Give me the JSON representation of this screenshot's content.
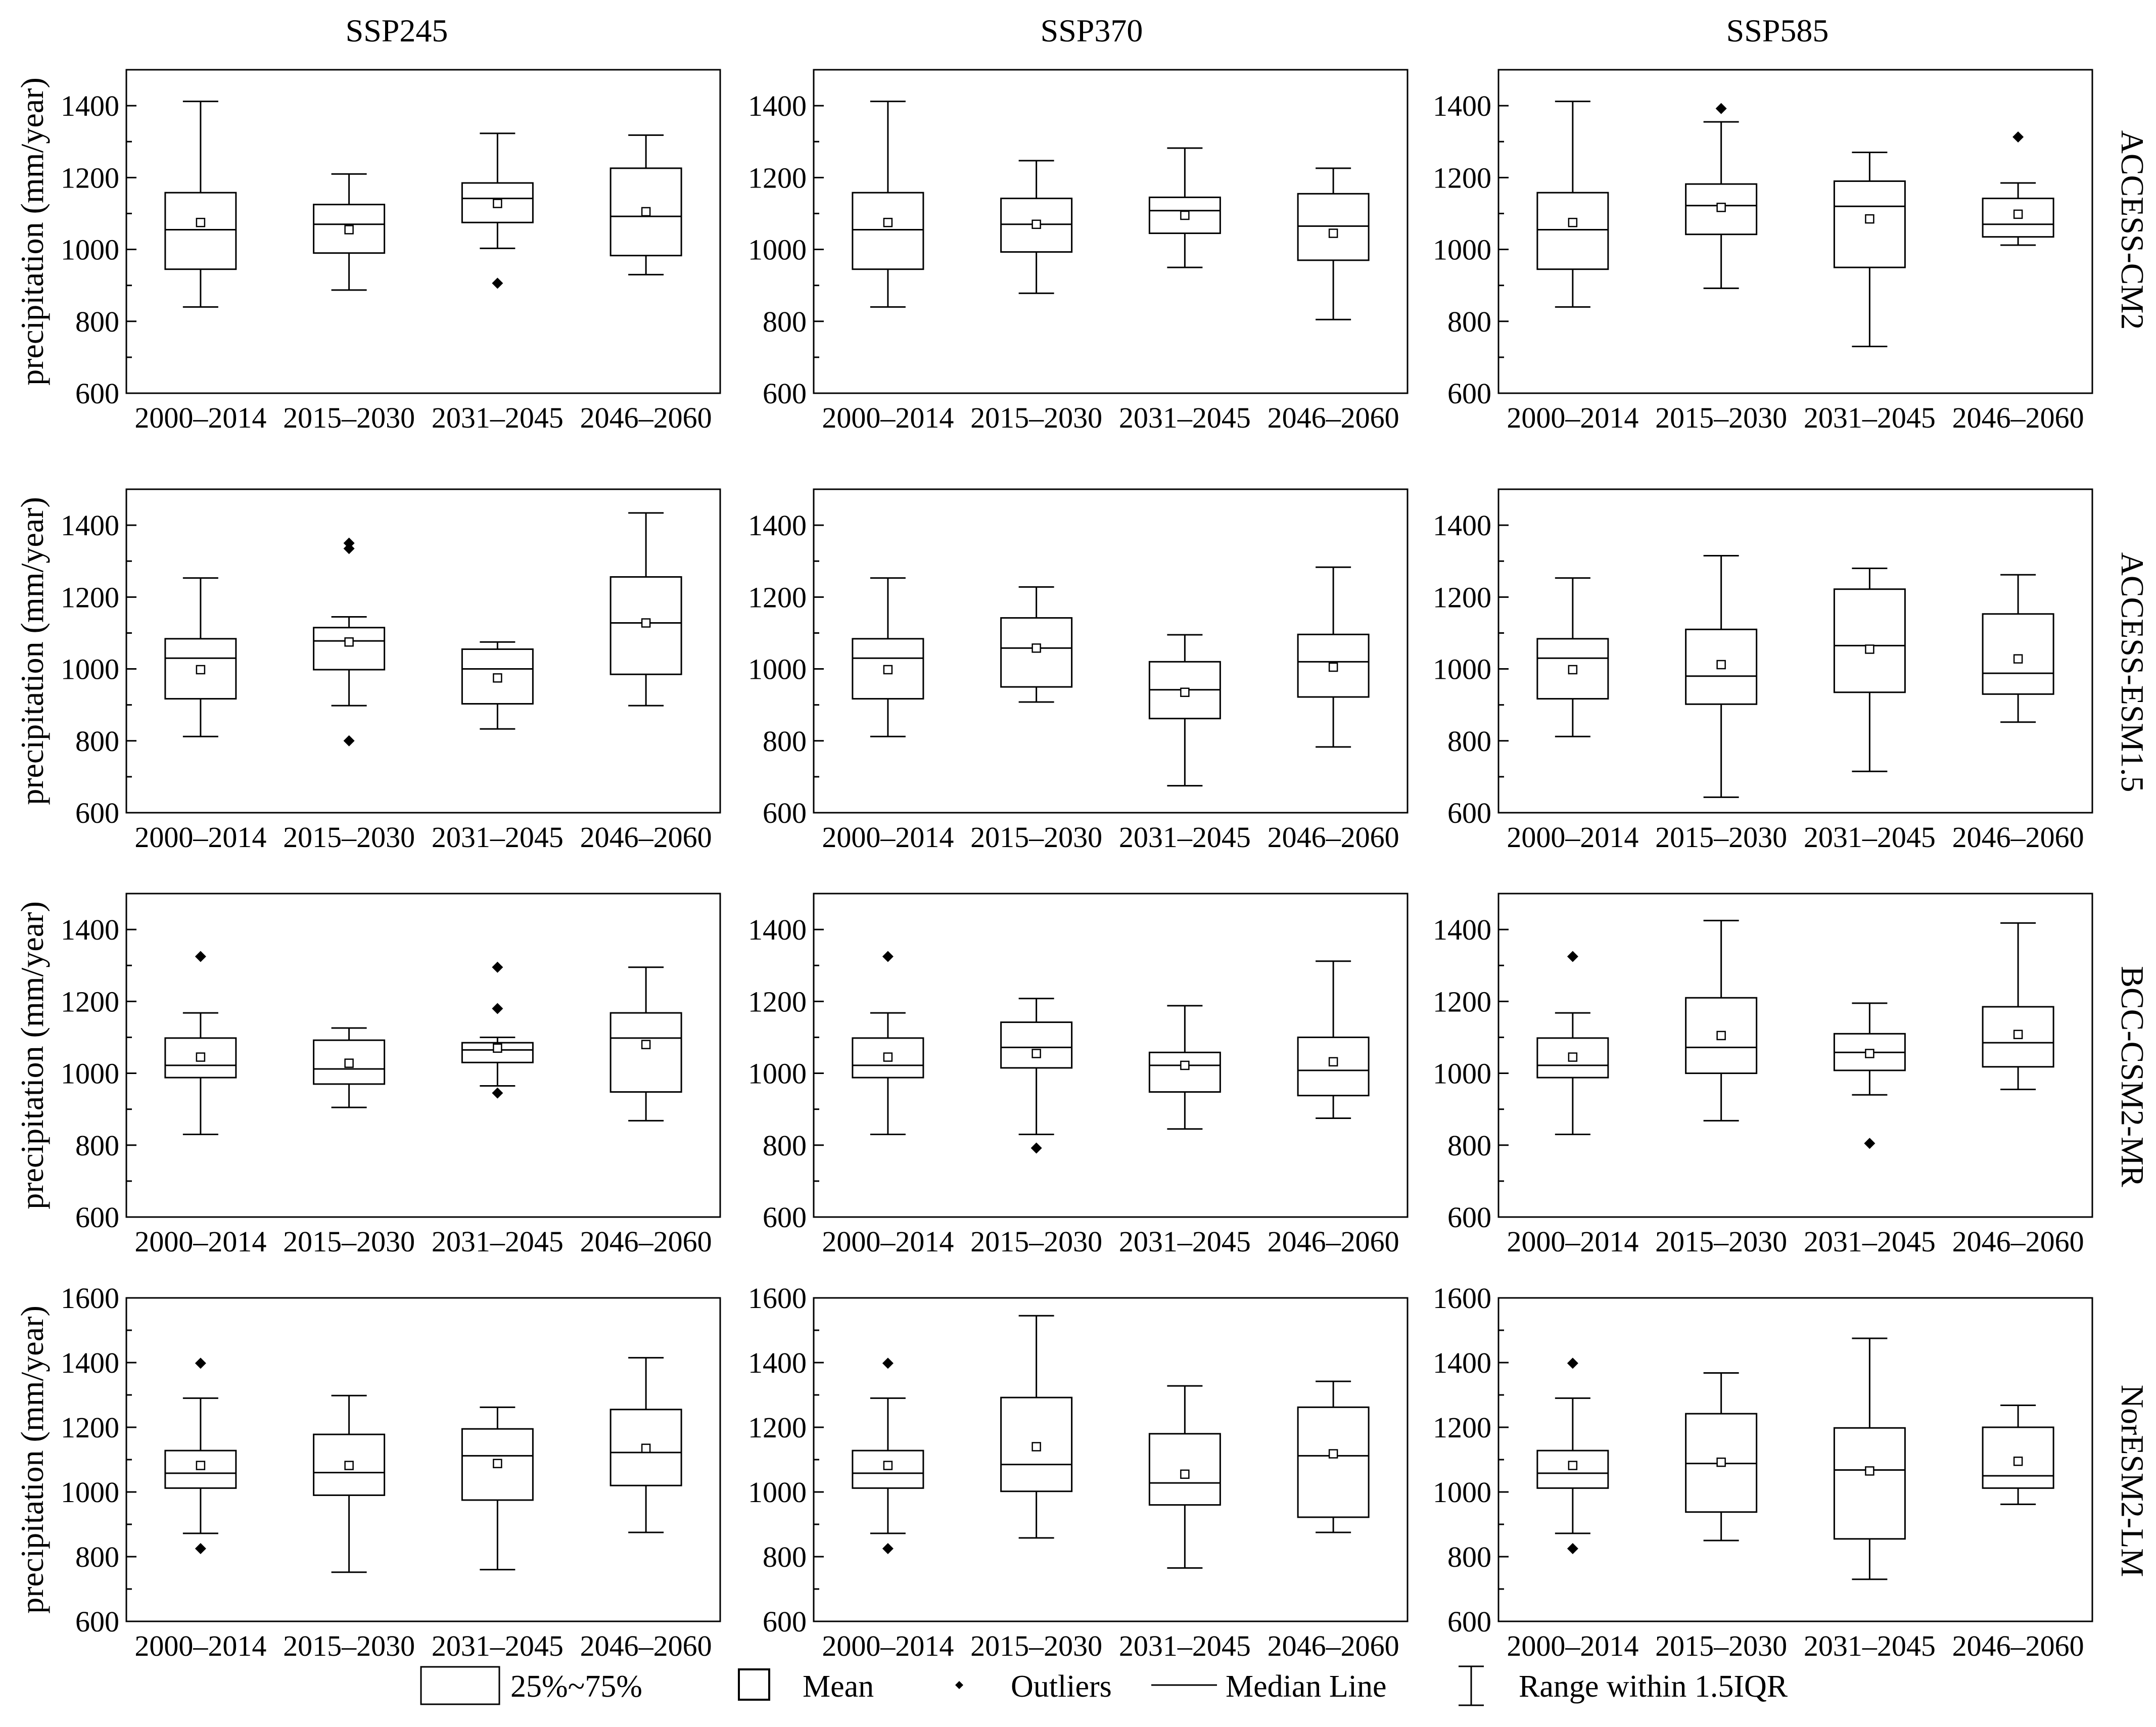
{
  "columns": [
    "SSP245",
    "SSP370",
    "SSP585"
  ],
  "rows": [
    "ACCESS-CM2",
    "ACCESS-ESM1.5",
    "BCC-CSM2-MR",
    "NorESM2-LM"
  ],
  "legend": {
    "box": "25%~75%",
    "mean": "Mean",
    "outliers": "Outliers",
    "median": "Median Line",
    "range": "Range within 1.5IQR"
  },
  "chart_data": [
    {
      "type": "box",
      "row": "ACCESS-CM2",
      "scenario": "SSP245",
      "ylabel": "precipitation (mm/year)",
      "ylim": [
        600,
        1500
      ],
      "yticks": [
        600,
        800,
        1000,
        1200,
        1400
      ],
      "categories": [
        "2000–2014",
        "2015–2030",
        "2031–2045",
        "2046–2060"
      ],
      "boxes": [
        {
          "min": 840,
          "q1": 945,
          "median": 1055,
          "q3": 1158,
          "max": 1412,
          "mean": 1075,
          "outliers": []
        },
        {
          "min": 887,
          "q1": 990,
          "median": 1070,
          "q3": 1125,
          "max": 1210,
          "mean": 1055,
          "outliers": []
        },
        {
          "min": 1003,
          "q1": 1075,
          "median": 1142,
          "q3": 1185,
          "max": 1323,
          "mean": 1128,
          "outliers": [
            906
          ]
        },
        {
          "min": 930,
          "q1": 983,
          "median": 1092,
          "q3": 1226,
          "max": 1318,
          "mean": 1105,
          "outliers": []
        }
      ]
    },
    {
      "type": "box",
      "row": "ACCESS-CM2",
      "scenario": "SSP370",
      "ylabel": "",
      "ylim": [
        600,
        1500
      ],
      "yticks": [
        600,
        800,
        1000,
        1200,
        1400
      ],
      "categories": [
        "2000–2014",
        "2015–2030",
        "2031–2045",
        "2046–2060"
      ],
      "boxes": [
        {
          "min": 840,
          "q1": 945,
          "median": 1055,
          "q3": 1158,
          "max": 1412,
          "mean": 1075,
          "outliers": []
        },
        {
          "min": 878,
          "q1": 993,
          "median": 1070,
          "q3": 1142,
          "max": 1247,
          "mean": 1070,
          "outliers": []
        },
        {
          "min": 950,
          "q1": 1045,
          "median": 1108,
          "q3": 1145,
          "max": 1282,
          "mean": 1095,
          "outliers": []
        },
        {
          "min": 805,
          "q1": 970,
          "median": 1065,
          "q3": 1155,
          "max": 1226,
          "mean": 1045,
          "outliers": []
        }
      ]
    },
    {
      "type": "box",
      "row": "ACCESS-CM2",
      "scenario": "SSP585",
      "ylabel": "",
      "ylim": [
        600,
        1500
      ],
      "yticks": [
        600,
        800,
        1000,
        1200,
        1400
      ],
      "categories": [
        "2000–2014",
        "2015–2030",
        "2031–2045",
        "2046–2060"
      ],
      "boxes": [
        {
          "min": 840,
          "q1": 945,
          "median": 1055,
          "q3": 1158,
          "max": 1412,
          "mean": 1075,
          "outliers": []
        },
        {
          "min": 892,
          "q1": 1042,
          "median": 1122,
          "q3": 1182,
          "max": 1355,
          "mean": 1117,
          "outliers": [
            1392
          ]
        },
        {
          "min": 730,
          "q1": 950,
          "median": 1120,
          "q3": 1190,
          "max": 1270,
          "mean": 1085,
          "outliers": []
        },
        {
          "min": 1012,
          "q1": 1035,
          "median": 1070,
          "q3": 1142,
          "max": 1185,
          "mean": 1098,
          "outliers": [
            1313
          ]
        }
      ]
    },
    {
      "type": "box",
      "row": "ACCESS-ESM1.5",
      "scenario": "SSP245",
      "ylabel": "precipitation (mm/year)",
      "ylim": [
        600,
        1500
      ],
      "yticks": [
        600,
        800,
        1000,
        1200,
        1400
      ],
      "categories": [
        "2000–2014",
        "2015–2030",
        "2031–2045",
        "2046–2060"
      ],
      "boxes": [
        {
          "min": 812,
          "q1": 917,
          "median": 1030,
          "q3": 1084,
          "max": 1253,
          "mean": 998,
          "outliers": []
        },
        {
          "min": 898,
          "q1": 998,
          "median": 1078,
          "q3": 1115,
          "max": 1145,
          "mean": 1075,
          "outliers": [
            1335,
            1350,
            800
          ]
        },
        {
          "min": 833,
          "q1": 903,
          "median": 1000,
          "q3": 1055,
          "max": 1075,
          "mean": 975,
          "outliers": []
        },
        {
          "min": 898,
          "q1": 985,
          "median": 1128,
          "q3": 1256,
          "max": 1434,
          "mean": 1128,
          "outliers": []
        }
      ]
    },
    {
      "type": "box",
      "row": "ACCESS-ESM1.5",
      "scenario": "SSP370",
      "ylabel": "",
      "ylim": [
        600,
        1500
      ],
      "yticks": [
        600,
        800,
        1000,
        1200,
        1400
      ],
      "categories": [
        "2000–2014",
        "2015–2030",
        "2031–2045",
        "2046–2060"
      ],
      "boxes": [
        {
          "min": 812,
          "q1": 917,
          "median": 1030,
          "q3": 1084,
          "max": 1253,
          "mean": 998,
          "outliers": []
        },
        {
          "min": 908,
          "q1": 950,
          "median": 1058,
          "q3": 1142,
          "max": 1228,
          "mean": 1058,
          "outliers": []
        },
        {
          "min": 675,
          "q1": 862,
          "median": 942,
          "q3": 1020,
          "max": 1095,
          "mean": 935,
          "outliers": []
        },
        {
          "min": 783,
          "q1": 922,
          "median": 1020,
          "q3": 1096,
          "max": 1283,
          "mean": 1005,
          "outliers": []
        }
      ]
    },
    {
      "type": "box",
      "row": "ACCESS-ESM1.5",
      "scenario": "SSP585",
      "ylabel": "",
      "ylim": [
        600,
        1500
      ],
      "yticks": [
        600,
        800,
        1000,
        1200,
        1400
      ],
      "categories": [
        "2000–2014",
        "2015–2030",
        "2031–2045",
        "2046–2060"
      ],
      "boxes": [
        {
          "min": 812,
          "q1": 917,
          "median": 1030,
          "q3": 1084,
          "max": 1253,
          "mean": 998,
          "outliers": []
        },
        {
          "min": 643,
          "q1": 902,
          "median": 980,
          "q3": 1110,
          "max": 1315,
          "mean": 1012,
          "outliers": []
        },
        {
          "min": 715,
          "q1": 935,
          "median": 1065,
          "q3": 1222,
          "max": 1280,
          "mean": 1055,
          "outliers": []
        },
        {
          "min": 852,
          "q1": 930,
          "median": 988,
          "q3": 1153,
          "max": 1262,
          "mean": 1028,
          "outliers": []
        }
      ]
    },
    {
      "type": "box",
      "row": "BCC-CSM2-MR",
      "scenario": "SSP245",
      "ylabel": "precipitation (mm/year)",
      "ylim": [
        600,
        1500
      ],
      "yticks": [
        600,
        800,
        1000,
        1200,
        1400
      ],
      "categories": [
        "2000–2014",
        "2015–2030",
        "2031–2045",
        "2046–2060"
      ],
      "boxes": [
        {
          "min": 830,
          "q1": 988,
          "median": 1022,
          "q3": 1098,
          "max": 1168,
          "mean": 1045,
          "outliers": [
            1325
          ]
        },
        {
          "min": 905,
          "q1": 970,
          "median": 1012,
          "q3": 1092,
          "max": 1126,
          "mean": 1028,
          "outliers": []
        },
        {
          "min": 965,
          "q1": 1030,
          "median": 1065,
          "q3": 1085,
          "max": 1100,
          "mean": 1070,
          "outliers": [
            1295,
            1180,
            945
          ]
        },
        {
          "min": 868,
          "q1": 948,
          "median": 1098,
          "q3": 1168,
          "max": 1295,
          "mean": 1080,
          "outliers": []
        }
      ]
    },
    {
      "type": "box",
      "row": "BCC-CSM2-MR",
      "scenario": "SSP370",
      "ylabel": "",
      "ylim": [
        600,
        1500
      ],
      "yticks": [
        600,
        800,
        1000,
        1200,
        1400
      ],
      "categories": [
        "2000–2014",
        "2015–2030",
        "2031–2045",
        "2046–2060"
      ],
      "boxes": [
        {
          "min": 830,
          "q1": 988,
          "median": 1022,
          "q3": 1098,
          "max": 1168,
          "mean": 1045,
          "outliers": [
            1325
          ]
        },
        {
          "min": 830,
          "q1": 1015,
          "median": 1072,
          "q3": 1142,
          "max": 1208,
          "mean": 1055,
          "outliers": [
            792
          ]
        },
        {
          "min": 845,
          "q1": 948,
          "median": 1022,
          "q3": 1058,
          "max": 1188,
          "mean": 1022,
          "outliers": []
        },
        {
          "min": 875,
          "q1": 938,
          "median": 1008,
          "q3": 1100,
          "max": 1312,
          "mean": 1032,
          "outliers": []
        }
      ]
    },
    {
      "type": "box",
      "row": "BCC-CSM2-MR",
      "scenario": "SSP585",
      "ylabel": "",
      "ylim": [
        600,
        1500
      ],
      "yticks": [
        600,
        800,
        1000,
        1200,
        1400
      ],
      "categories": [
        "2000–2014",
        "2015–2030",
        "2031–2045",
        "2046–2060"
      ],
      "boxes": [
        {
          "min": 830,
          "q1": 988,
          "median": 1022,
          "q3": 1098,
          "max": 1168,
          "mean": 1045,
          "outliers": [
            1325
          ]
        },
        {
          "min": 868,
          "q1": 1000,
          "median": 1072,
          "q3": 1210,
          "max": 1425,
          "mean": 1105,
          "outliers": []
        },
        {
          "min": 940,
          "q1": 1008,
          "median": 1058,
          "q3": 1110,
          "max": 1195,
          "mean": 1055,
          "outliers": [
            805
          ]
        },
        {
          "min": 955,
          "q1": 1018,
          "median": 1085,
          "q3": 1185,
          "max": 1418,
          "mean": 1108,
          "outliers": []
        }
      ]
    },
    {
      "type": "box",
      "row": "NorESM2-LM",
      "scenario": "SSP245",
      "ylabel": "precipitation (mm/year)",
      "ylim": [
        600,
        1600
      ],
      "yticks": [
        600,
        800,
        1000,
        1200,
        1400,
        1600
      ],
      "categories": [
        "2000–2014",
        "2015–2030",
        "2031–2045",
        "2046–2060"
      ],
      "boxes": [
        {
          "min": 872,
          "q1": 1012,
          "median": 1058,
          "q3": 1128,
          "max": 1290,
          "mean": 1082,
          "outliers": [
            1398,
            825
          ]
        },
        {
          "min": 752,
          "q1": 990,
          "median": 1060,
          "q3": 1178,
          "max": 1298,
          "mean": 1082,
          "outliers": []
        },
        {
          "min": 760,
          "q1": 975,
          "median": 1112,
          "q3": 1195,
          "max": 1262,
          "mean": 1088,
          "outliers": []
        },
        {
          "min": 875,
          "q1": 1020,
          "median": 1122,
          "q3": 1255,
          "max": 1415,
          "mean": 1135,
          "outliers": []
        }
      ]
    },
    {
      "type": "box",
      "row": "NorESM2-LM",
      "scenario": "SSP370",
      "ylabel": "",
      "ylim": [
        600,
        1600
      ],
      "yticks": [
        600,
        800,
        1000,
        1200,
        1400,
        1600
      ],
      "categories": [
        "2000–2014",
        "2015–2030",
        "2031–2045",
        "2046–2060"
      ],
      "boxes": [
        {
          "min": 872,
          "q1": 1012,
          "median": 1058,
          "q3": 1128,
          "max": 1290,
          "mean": 1082,
          "outliers": [
            1398,
            825
          ]
        },
        {
          "min": 858,
          "q1": 1002,
          "median": 1085,
          "q3": 1292,
          "max": 1545,
          "mean": 1140,
          "outliers": []
        },
        {
          "min": 765,
          "q1": 960,
          "median": 1028,
          "q3": 1180,
          "max": 1328,
          "mean": 1055,
          "outliers": []
        },
        {
          "min": 875,
          "q1": 922,
          "median": 1112,
          "q3": 1262,
          "max": 1342,
          "mean": 1118,
          "outliers": []
        }
      ]
    },
    {
      "type": "box",
      "row": "NorESM2-LM",
      "scenario": "SSP585",
      "ylabel": "",
      "ylim": [
        600,
        1600
      ],
      "yticks": [
        600,
        800,
        1000,
        1200,
        1400,
        1600
      ],
      "categories": [
        "2000–2014",
        "2015–2030",
        "2031–2045",
        "2046–2060"
      ],
      "boxes": [
        {
          "min": 872,
          "q1": 1012,
          "median": 1058,
          "q3": 1128,
          "max": 1290,
          "mean": 1082,
          "outliers": [
            1398,
            825
          ]
        },
        {
          "min": 850,
          "q1": 938,
          "median": 1088,
          "q3": 1242,
          "max": 1368,
          "mean": 1092,
          "outliers": []
        },
        {
          "min": 730,
          "q1": 855,
          "median": 1068,
          "q3": 1198,
          "max": 1475,
          "mean": 1065,
          "outliers": []
        },
        {
          "min": 962,
          "q1": 1012,
          "median": 1050,
          "q3": 1200,
          "max": 1268,
          "mean": 1095,
          "outliers": []
        }
      ]
    }
  ]
}
